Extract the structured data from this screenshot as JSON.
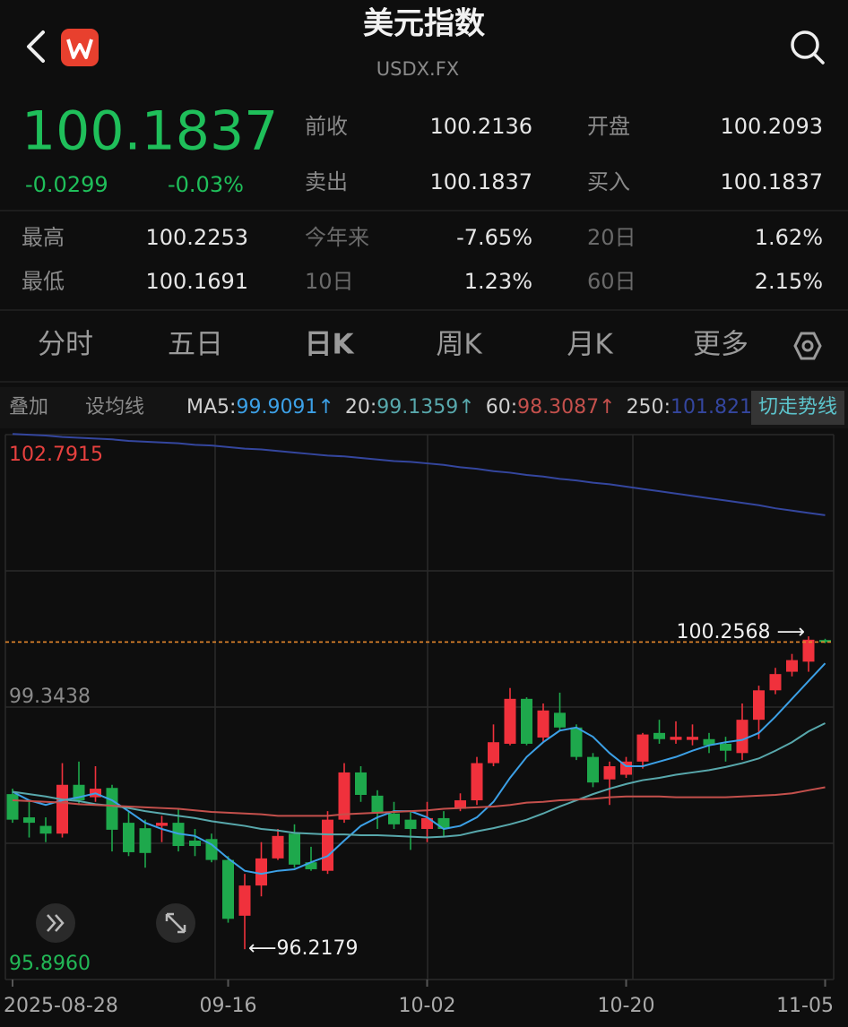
{
  "header": {
    "title": "美元指数",
    "subtitle": "USDX.FX"
  },
  "quote": {
    "price": "100.1837",
    "change": "-0.0299",
    "change_pct": "-0.03%",
    "fields": [
      {
        "label": "前收",
        "value": "100.2136"
      },
      {
        "label": "开盘",
        "value": "100.2093"
      },
      {
        "label": "卖出",
        "value": "100.1837"
      },
      {
        "label": "买入",
        "value": "100.1837"
      }
    ],
    "stats": [
      {
        "label": "最高",
        "value": "100.2253"
      },
      {
        "label": "今年来",
        "value": "-7.65%"
      },
      {
        "label": "20日",
        "value": "1.62%"
      },
      {
        "label": "最低",
        "value": "100.1691"
      },
      {
        "label": "10日",
        "value": "1.23%"
      },
      {
        "label": "60日",
        "value": "2.15%"
      }
    ]
  },
  "tabs": {
    "items": [
      "分时",
      "五日",
      "日K",
      "周K",
      "月K",
      "更多"
    ],
    "active": 2
  },
  "toolbar": {
    "overlay": "叠加",
    "set_ma": "设均线",
    "switch": "切走势线"
  },
  "chart_data": {
    "type": "candlestick",
    "categories": [
      "2025-08-28",
      null,
      null,
      null,
      null,
      null,
      null,
      null,
      null,
      null,
      null,
      null,
      null,
      "09-16",
      null,
      null,
      null,
      null,
      null,
      null,
      null,
      null,
      null,
      null,
      null,
      "10-02",
      null,
      null,
      null,
      null,
      null,
      null,
      null,
      null,
      null,
      null,
      null,
      "10-20",
      null,
      null,
      null,
      null,
      null,
      null,
      null,
      null,
      null,
      null,
      null,
      "11-05"
    ],
    "open": [
      98.22,
      97.92,
      97.81,
      97.71,
      98.34,
      98.18,
      98.3,
      97.85,
      97.78,
      97.81,
      97.85,
      97.62,
      97.64,
      97.37,
      96.65,
      97.04,
      97.39,
      97.71,
      97.34,
      97.23,
      97.89,
      98.5,
      98.2,
      97.97,
      97.89,
      97.77,
      97.91,
      98.03,
      98.14,
      98.62,
      98.87,
      99.45,
      98.95,
      99.27,
      99.08,
      98.7,
      98.41,
      98.47,
      98.64,
      99.01,
      98.92,
      98.92,
      98.93,
      98.87,
      98.75,
      99.18,
      99.56,
      99.8,
      99.93,
      100.2093
    ],
    "high": [
      98.29,
      98.12,
      97.92,
      98.62,
      98.64,
      98.58,
      98.34,
      98.0,
      97.89,
      97.94,
      98.04,
      97.77,
      97.71,
      97.42,
      97.19,
      97.6,
      97.77,
      97.83,
      97.54,
      98.0,
      98.62,
      98.58,
      98.27,
      98.12,
      98.0,
      98.12,
      98.0,
      98.23,
      98.7,
      99.12,
      99.59,
      99.47,
      99.39,
      99.53,
      99.12,
      98.75,
      98.64,
      98.7,
      99.01,
      99.18,
      99.16,
      99.12,
      99.01,
      98.96,
      99.39,
      99.62,
      99.85,
      100.03,
      100.2568,
      100.2253
    ],
    "low": [
      97.85,
      97.66,
      97.6,
      97.66,
      98.08,
      98.12,
      97.48,
      97.42,
      97.27,
      97.6,
      97.48,
      97.42,
      97.34,
      96.56,
      96.2179,
      96.9,
      97.37,
      97.27,
      97.23,
      97.19,
      97.85,
      98.12,
      97.77,
      97.77,
      97.5,
      97.6,
      97.66,
      98.0,
      98.08,
      98.58,
      98.85,
      98.85,
      98.89,
      99.04,
      98.66,
      98.31,
      98.08,
      98.43,
      98.55,
      98.87,
      98.87,
      98.85,
      98.75,
      98.64,
      98.66,
      98.93,
      99.51,
      99.74,
      99.8,
      100.1691
    ],
    "close": [
      97.89,
      97.85,
      97.71,
      98.34,
      98.14,
      98.29,
      97.76,
      97.47,
      97.46,
      97.85,
      97.55,
      97.55,
      97.37,
      96.61,
      97.04,
      97.39,
      97.68,
      97.31,
      97.25,
      97.89,
      98.5,
      98.21,
      97.97,
      97.83,
      97.77,
      97.91,
      97.77,
      98.14,
      98.62,
      98.89,
      99.45,
      98.87,
      99.3,
      99.08,
      98.7,
      98.37,
      98.58,
      98.64,
      98.99,
      98.93,
      98.96,
      98.96,
      98.85,
      98.78,
      99.18,
      99.56,
      99.77,
      99.95,
      100.2136,
      100.1837
    ],
    "up_color": "#f0313c",
    "down_color": "#1ea84c",
    "ylim": [
      95.896,
      102.7915
    ],
    "yticks": [
      102.7915,
      99.3438,
      {
        "value": 95.896,
        "label": "95.8960"
      }
    ],
    "ytick_colors": [
      "#e8413f",
      "#8a8a8a",
      "#22b856"
    ],
    "legend_separator": ":",
    "ma": [
      {
        "name": "MA5",
        "color": "#3ca0e6",
        "trend": "↑",
        "values": [
          98.25,
          98.14,
          98.08,
          98.14,
          98.18,
          98.23,
          98.14,
          98.0,
          97.85,
          97.77,
          97.71,
          97.68,
          97.57,
          97.39,
          97.23,
          97.19,
          97.23,
          97.25,
          97.34,
          97.42,
          97.62,
          97.81,
          97.92,
          98.0,
          98.0,
          97.92,
          97.77,
          97.81,
          97.92,
          98.12,
          98.43,
          98.7,
          98.89,
          99.04,
          99.08,
          98.96,
          98.75,
          98.58,
          98.58,
          98.64,
          98.7,
          98.78,
          98.85,
          98.89,
          98.92,
          99.01,
          99.22,
          99.45,
          99.68,
          99.9091
        ]
      },
      {
        "name": "20",
        "color": "#58a8ac",
        "trend": "↑",
        "values": [
          98.25,
          98.22,
          98.19,
          98.15,
          98.13,
          98.09,
          98.07,
          98.04,
          98.0,
          97.97,
          97.94,
          97.91,
          97.87,
          97.84,
          97.81,
          97.77,
          97.75,
          97.72,
          97.71,
          97.7,
          97.7,
          97.69,
          97.69,
          97.68,
          97.67,
          97.66,
          97.67,
          97.69,
          97.74,
          97.78,
          97.83,
          97.89,
          97.97,
          98.06,
          98.14,
          98.22,
          98.29,
          98.35,
          98.4,
          98.43,
          98.47,
          98.5,
          98.53,
          98.57,
          98.62,
          98.68,
          98.78,
          98.89,
          99.03,
          99.1359
        ]
      },
      {
        "name": "60",
        "color": "#c4504c",
        "trend": "↑",
        "values": [
          98.14,
          98.13,
          98.12,
          98.11,
          98.09,
          98.08,
          98.07,
          98.06,
          98.05,
          98.04,
          98.03,
          98.01,
          97.99,
          97.98,
          97.97,
          97.96,
          97.94,
          97.94,
          97.94,
          97.94,
          97.96,
          97.97,
          97.98,
          97.99,
          98.0,
          98.01,
          98.03,
          98.04,
          98.05,
          98.06,
          98.08,
          98.11,
          98.12,
          98.14,
          98.15,
          98.16,
          98.18,
          98.19,
          98.19,
          98.19,
          98.18,
          98.18,
          98.18,
          98.18,
          98.19,
          98.2,
          98.21,
          98.23,
          98.27,
          98.3087
        ]
      },
      {
        "name": "250",
        "color": "#34469e",
        "values": [
          102.87,
          102.86,
          102.85,
          102.83,
          102.82,
          102.81,
          102.8,
          102.78,
          102.77,
          102.76,
          102.75,
          102.73,
          102.72,
          102.7,
          102.68,
          102.67,
          102.65,
          102.63,
          102.61,
          102.59,
          102.58,
          102.56,
          102.54,
          102.52,
          102.51,
          102.49,
          102.47,
          102.44,
          102.42,
          102.39,
          102.37,
          102.34,
          102.32,
          102.29,
          102.27,
          102.24,
          102.22,
          102.19,
          102.16,
          102.13,
          102.1,
          102.07,
          102.04,
          102.01,
          101.98,
          101.95,
          101.91,
          101.88,
          101.85,
          101.821
        ]
      }
    ],
    "annotations": [
      {
        "value": 100.2568,
        "label": "100.2568 ⟶"
      },
      {
        "value": 96.2179,
        "label": "⟵96.2179"
      }
    ],
    "last_price_color": "#e8892c"
  }
}
